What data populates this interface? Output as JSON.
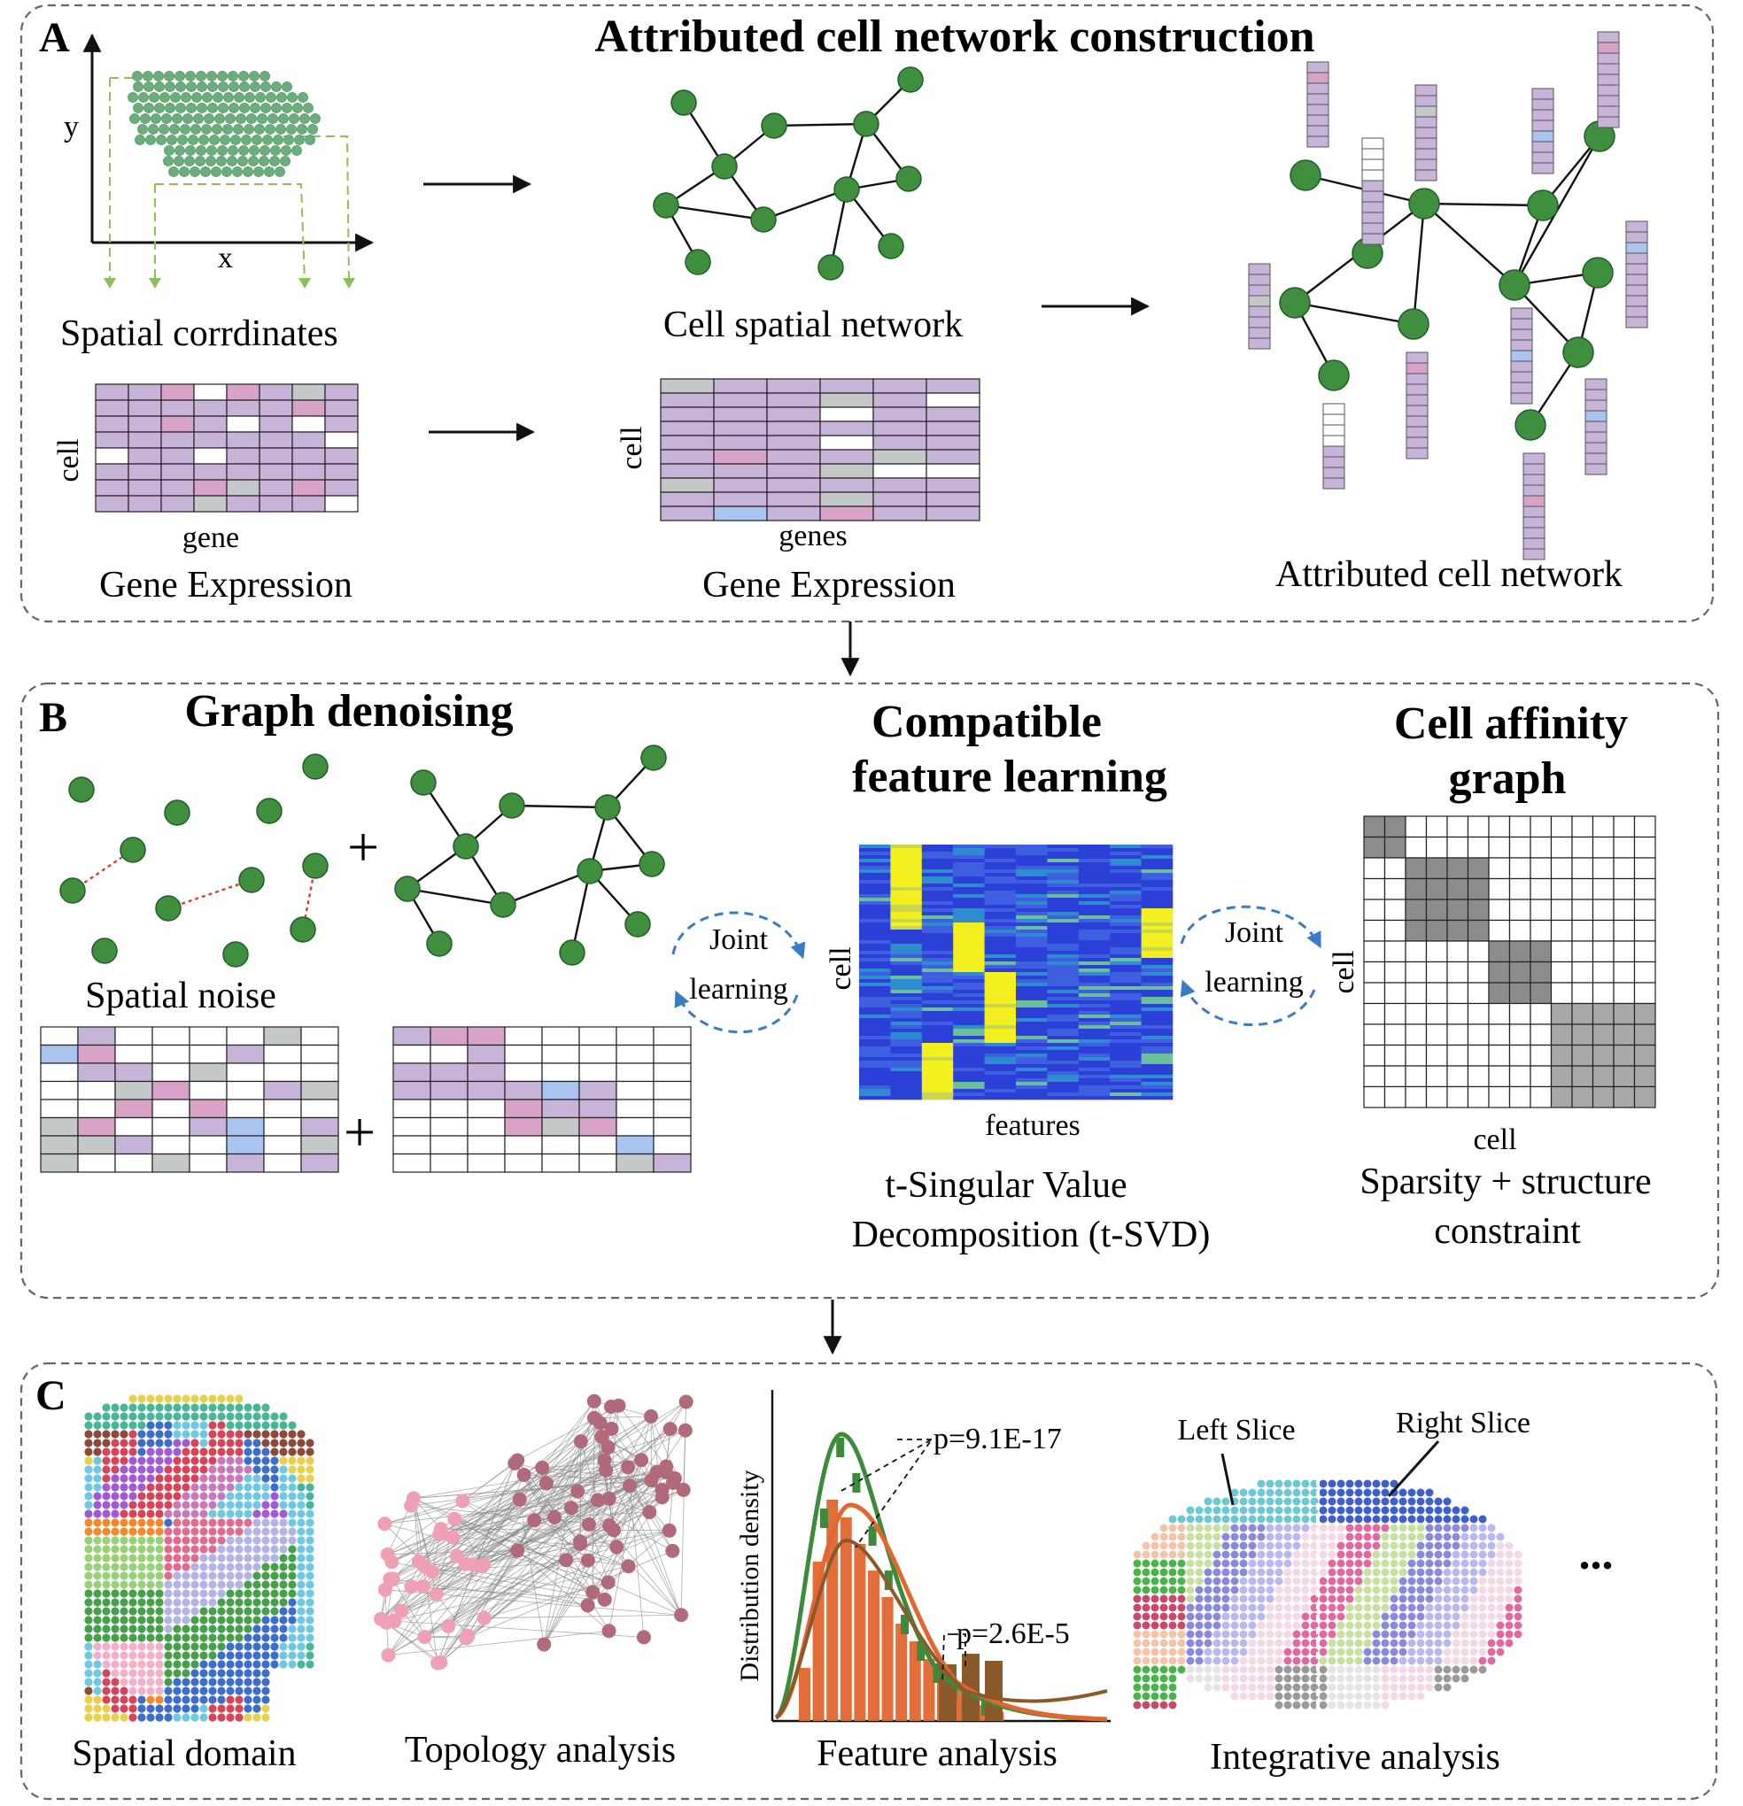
{
  "panel_a": {
    "letter": "A",
    "title": "Attributed cell network construction",
    "axis_x": "x",
    "axis_y": "y",
    "spatial_label": "Spatial corrdinates",
    "cell_network_label": "Cell spatial network",
    "matrix1_row_label": "cell",
    "matrix1_col_label": "gene",
    "matrix1_caption": "Gene Expression",
    "matrix2_row_label": "cell",
    "matrix2_col_label": "genes",
    "matrix2_caption": "Gene Expression",
    "attributed_label": "Attributed cell network"
  },
  "panel_b": {
    "letter": "B",
    "graph_denoising_title": "Graph denoising",
    "plus_sign": "+",
    "spatial_noise_label": "Spatial noise",
    "feature_title_line1": "Compatible",
    "feature_title_line2": "feature learning",
    "joint_left_line1": "Joint",
    "joint_left_line2": "learning",
    "joint_right_line1": "Joint",
    "joint_right_line2": "learning",
    "heatmap_row_label": "cell",
    "heatmap_col_label": "features",
    "tsvd_line1": "t-Singular Value",
    "tsvd_line2": "Decomposition (t-SVD)",
    "affinity_title_line1": "Cell affinity",
    "affinity_title_line2": "graph",
    "affinity_row_label": "cell",
    "affinity_col_label": "cell",
    "constraint_line1": "Sparsity + structure",
    "constraint_line2": "constraint"
  },
  "panel_c": {
    "letter": "C",
    "spatial_domain_label": "Spatial domain",
    "topology_label": "Topology analysis",
    "feature_label": "Feature analysis",
    "density_axis_label": "Distribution density",
    "pvalue1": "p=9.1E-17",
    "pvalue2": "p=2.6E-5",
    "left_slice_label": "Left Slice",
    "right_slice_label": "Right Slice",
    "integrative_label": "Integrative analysis",
    "ellipsis": "..."
  },
  "colors": {
    "node_green": "#3f8f3f",
    "lavender": "#c8b4d8",
    "light_blue": "#a8c4ef",
    "pink": "#d9a3c7",
    "gray": "#c4c8c8",
    "noise_red": "#e03b2a",
    "joint_blue": "#3a7bc8",
    "hist_orange": "#e3662f",
    "hist_green": "#3c8b3a",
    "hist_brown": "#8a5a2a"
  }
}
